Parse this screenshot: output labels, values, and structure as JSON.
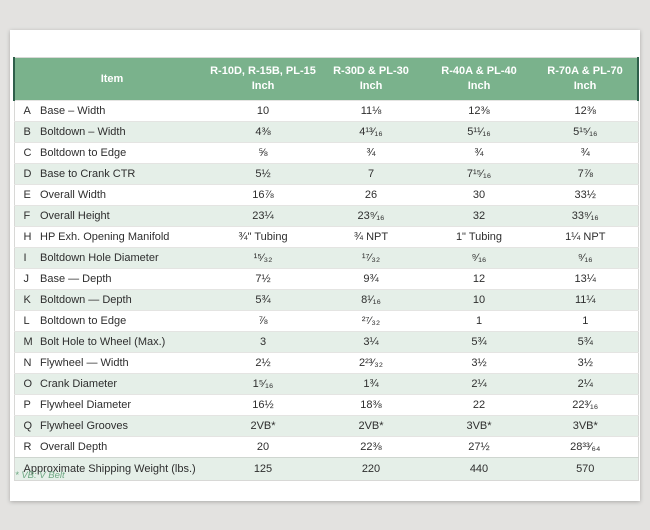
{
  "table": {
    "columns": [
      {
        "line1": "Item",
        "line2": ""
      },
      {
        "line1": "R-10D, R-15B, PL-15",
        "line2": "Inch"
      },
      {
        "line1": "R-30D & PL-30",
        "line2": "Inch"
      },
      {
        "line1": "R-40A & PL-40",
        "line2": "Inch"
      },
      {
        "line1": "R-70A & PL-70",
        "line2": "Inch"
      }
    ],
    "rows": [
      {
        "letter": "A",
        "item": "Base – Width",
        "values": [
          "10",
          "11⅛",
          "12⅜",
          "12⅜"
        ]
      },
      {
        "letter": "B",
        "item": "Boltdown – Width",
        "values": [
          "4⅜",
          "4¹³⁄₁₆",
          "5¹¹⁄₁₆",
          "5¹⁵⁄₁₆"
        ]
      },
      {
        "letter": "C",
        "item": "Boltdown to Edge",
        "values": [
          "⅝",
          "¾",
          "¾",
          "¾"
        ]
      },
      {
        "letter": "D",
        "item": "Base to Crank CTR",
        "values": [
          "5½",
          "7",
          "7¹⁵⁄₁₆",
          "7⅞"
        ]
      },
      {
        "letter": "E",
        "item": "Overall Width",
        "values": [
          "16⅞",
          "26",
          "30",
          "33½"
        ]
      },
      {
        "letter": "F",
        "item": "Overall Height",
        "values": [
          "23¼",
          "23⁹⁄₁₆",
          "32",
          "33⁹⁄₁₆"
        ]
      },
      {
        "letter": "H",
        "item": "HP Exh. Opening Manifold",
        "values": [
          "¾\" Tubing",
          "¾ NPT",
          "1\" Tubing",
          "1¼ NPT"
        ]
      },
      {
        "letter": "I",
        "item": "Boltdown Hole Diameter",
        "values": [
          "¹⁵⁄₃₂",
          "¹⁷⁄₃₂",
          "⁹⁄₁₆",
          "⁹⁄₁₆"
        ]
      },
      {
        "letter": "J",
        "item": "Base — Depth",
        "values": [
          "7½",
          "9¾",
          "12",
          "13¼"
        ]
      },
      {
        "letter": "K",
        "item": "Boltdown — Depth",
        "values": [
          "5¾",
          "8¹⁄₁₆",
          "10",
          "11¼"
        ]
      },
      {
        "letter": "L",
        "item": "Boltdown to Edge",
        "values": [
          "⅞",
          "²⁷⁄₃₂",
          "1",
          "1"
        ]
      },
      {
        "letter": "M",
        "item": "Bolt Hole to Wheel (Max.)",
        "values": [
          "3",
          "3¼",
          "5¾",
          "5¾"
        ]
      },
      {
        "letter": "N",
        "item": "Flywheel — Width",
        "values": [
          "2½",
          "2²³⁄₃₂",
          "3½",
          "3½"
        ]
      },
      {
        "letter": "O",
        "item": "Crank Diameter",
        "values": [
          "1⁵⁄₁₆",
          "1¾",
          "2¼",
          "2¼"
        ]
      },
      {
        "letter": "P",
        "item": "Flywheel Diameter",
        "values": [
          "16½",
          "18⅜",
          "22",
          "22³⁄₁₆"
        ]
      },
      {
        "letter": "Q",
        "item": "Flywheel Grooves",
        "values": [
          "2VB*",
          "2VB*",
          "3VB*",
          "3VB*"
        ]
      },
      {
        "letter": "R",
        "item": "Overall Depth",
        "values": [
          "20",
          "22⅜",
          "27½",
          "28³³⁄₆₄"
        ]
      }
    ],
    "summary_row": {
      "label": "Approximate Shipping Weight (lbs.)",
      "values": [
        "125",
        "220",
        "440",
        "570"
      ]
    }
  },
  "footnote": "* VB: V Belt",
  "colors": {
    "header_green": "#7ab28c",
    "header_accent_dark_green": "#2e5f4a",
    "row_tint_green": "#e5efe8",
    "footnote_green": "#6ea883",
    "page_background": "#e3e2e0"
  }
}
